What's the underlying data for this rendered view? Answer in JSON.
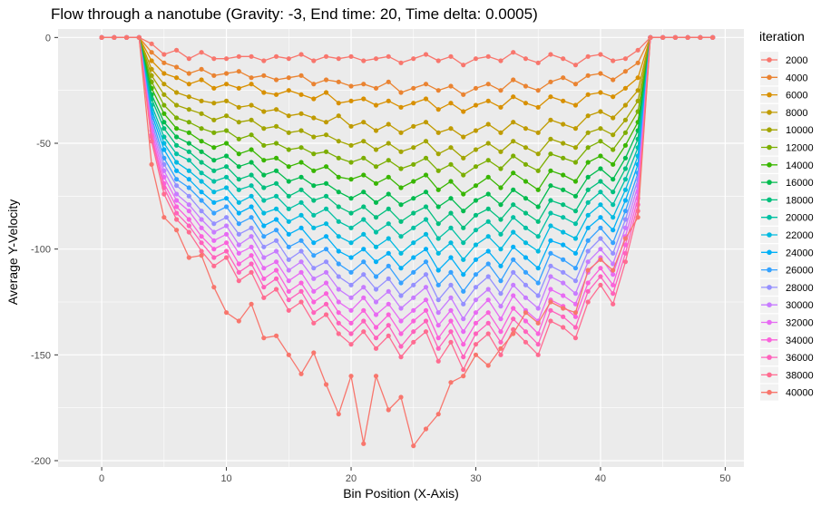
{
  "chart_data": {
    "type": "line",
    "title": "Flow through a nanotube (Gravity: -3, End time: 20, Time delta: 0.0005)",
    "xlabel": "Bin Position (X-Axis)",
    "ylabel": "Average Y-Velocity",
    "xlim": [
      -3.5,
      51.5
    ],
    "ylim": [
      -203,
      4
    ],
    "x_ticks": [
      0,
      10,
      20,
      30,
      40,
      50
    ],
    "x_tick_labels": [
      "0",
      "10",
      "20",
      "30",
      "40",
      "50"
    ],
    "y_ticks": [
      0,
      -50,
      -100,
      -150,
      -200
    ],
    "y_tick_labels": [
      "0",
      "-50",
      "-100",
      "-150",
      "-200"
    ],
    "grid": true,
    "legend_title": "iteration",
    "legend_position": "right",
    "x": [
      0,
      1,
      2,
      3,
      4,
      5,
      6,
      7,
      8,
      9,
      10,
      11,
      12,
      13,
      14,
      15,
      16,
      17,
      18,
      19,
      20,
      21,
      22,
      23,
      24,
      25,
      26,
      27,
      28,
      29,
      30,
      31,
      32,
      33,
      34,
      35,
      36,
      37,
      38,
      39,
      40,
      41,
      42,
      43,
      44,
      45,
      46,
      47,
      48,
      49
    ],
    "series": [
      {
        "name": "2000",
        "color": "#F8766D",
        "values": [
          0,
          0,
          0,
          0,
          -3,
          -8,
          -6,
          -10,
          -7,
          -10,
          -10,
          -9,
          -9,
          -11,
          -9,
          -10,
          -8,
          -11,
          -9,
          -10,
          -9,
          -11,
          -10,
          -9,
          -12,
          -10,
          -8,
          -11,
          -9,
          -13,
          -10,
          -9,
          -11,
          -7,
          -10,
          -12,
          -8,
          -10,
          -13,
          -9,
          -8,
          -11,
          -10,
          -6,
          0,
          0,
          0,
          0,
          0,
          0
        ]
      },
      {
        "name": "4000",
        "color": "#EA8331",
        "values": [
          0,
          0,
          0,
          0,
          -7,
          -12,
          -14,
          -17,
          -15,
          -18,
          -17,
          -16,
          -19,
          -18,
          -20,
          -19,
          -18,
          -22,
          -20,
          -21,
          -23,
          -22,
          -24,
          -21,
          -26,
          -24,
          -22,
          -25,
          -23,
          -27,
          -24,
          -22,
          -25,
          -20,
          -23,
          -25,
          -21,
          -19,
          -22,
          -18,
          -17,
          -20,
          -16,
          -12,
          0,
          0,
          0,
          0,
          0,
          0
        ]
      },
      {
        "name": "6000",
        "color": "#D89000",
        "values": [
          0,
          0,
          0,
          0,
          -11,
          -17,
          -19,
          -22,
          -20,
          -24,
          -22,
          -24,
          -22,
          -26,
          -27,
          -25,
          -27,
          -29,
          -26,
          -31,
          -30,
          -29,
          -32,
          -30,
          -33,
          -31,
          -29,
          -34,
          -31,
          -35,
          -32,
          -30,
          -33,
          -28,
          -31,
          -33,
          -28,
          -30,
          -32,
          -27,
          -26,
          -28,
          -24,
          -19,
          0,
          0,
          0,
          0,
          0,
          0
        ]
      },
      {
        "name": "8000",
        "color": "#C09B00",
        "values": [
          0,
          0,
          0,
          0,
          -15,
          -22,
          -26,
          -28,
          -30,
          -31,
          -30,
          -33,
          -32,
          -35,
          -34,
          -37,
          -36,
          -38,
          -40,
          -37,
          -42,
          -40,
          -44,
          -41,
          -45,
          -42,
          -40,
          -45,
          -43,
          -47,
          -44,
          -41,
          -45,
          -40,
          -43,
          -45,
          -39,
          -41,
          -43,
          -37,
          -35,
          -38,
          -32,
          -25,
          0,
          0,
          0,
          0,
          0,
          0
        ]
      },
      {
        "name": "10000",
        "color": "#A3A500",
        "values": [
          0,
          0,
          0,
          0,
          -18,
          -27,
          -32,
          -34,
          -36,
          -39,
          -37,
          -40,
          -39,
          -43,
          -42,
          -45,
          -44,
          -47,
          -46,
          -49,
          -51,
          -49,
          -53,
          -50,
          -54,
          -52,
          -49,
          -55,
          -52,
          -57,
          -53,
          -50,
          -54,
          -49,
          -52,
          -55,
          -48,
          -50,
          -52,
          -45,
          -43,
          -46,
          -39,
          -30,
          0,
          0,
          0,
          0,
          0,
          0
        ]
      },
      {
        "name": "12000",
        "color": "#7CAE00",
        "values": [
          0,
          0,
          0,
          0,
          -21,
          -32,
          -38,
          -40,
          -43,
          -45,
          -44,
          -48,
          -46,
          -51,
          -50,
          -53,
          -52,
          -55,
          -54,
          -57,
          -59,
          -57,
          -61,
          -58,
          -62,
          -60,
          -57,
          -63,
          -60,
          -65,
          -61,
          -58,
          -62,
          -56,
          -60,
          -63,
          -55,
          -57,
          -59,
          -52,
          -49,
          -53,
          -45,
          -35,
          0,
          0,
          0,
          0,
          0,
          0
        ]
      },
      {
        "name": "14000",
        "color": "#39B600",
        "values": [
          0,
          0,
          0,
          0,
          -24,
          -36,
          -43,
          -45,
          -49,
          -52,
          -50,
          -55,
          -53,
          -58,
          -57,
          -61,
          -59,
          -63,
          -61,
          -66,
          -67,
          -65,
          -69,
          -66,
          -71,
          -68,
          -65,
          -72,
          -68,
          -74,
          -70,
          -66,
          -71,
          -64,
          -68,
          -72,
          -63,
          -65,
          -68,
          -59,
          -56,
          -60,
          -51,
          -40,
          0,
          0,
          0,
          0,
          0,
          0
        ]
      },
      {
        "name": "16000",
        "color": "#00BB4E",
        "values": [
          0,
          0,
          0,
          0,
          -27,
          -40,
          -47,
          -50,
          -54,
          -58,
          -56,
          -61,
          -59,
          -65,
          -63,
          -68,
          -66,
          -70,
          -69,
          -73,
          -76,
          -73,
          -78,
          -74,
          -79,
          -76,
          -73,
          -80,
          -76,
          -82,
          -77,
          -74,
          -79,
          -72,
          -76,
          -80,
          -70,
          -72,
          -75,
          -66,
          -62,
          -67,
          -57,
          -44,
          0,
          0,
          0,
          0,
          0,
          0
        ]
      },
      {
        "name": "18000",
        "color": "#00BF7D",
        "values": [
          0,
          0,
          0,
          0,
          -29,
          -43,
          -51,
          -54,
          -59,
          -63,
          -61,
          -67,
          -65,
          -71,
          -69,
          -75,
          -72,
          -77,
          -75,
          -80,
          -83,
          -80,
          -85,
          -81,
          -87,
          -83,
          -80,
          -88,
          -83,
          -90,
          -84,
          -81,
          -86,
          -79,
          -83,
          -87,
          -77,
          -79,
          -82,
          -72,
          -68,
          -73,
          -62,
          -48,
          0,
          0,
          0,
          0,
          0,
          0
        ]
      },
      {
        "name": "20000",
        "color": "#00C1A3",
        "values": [
          0,
          0,
          0,
          0,
          -32,
          -47,
          -55,
          -58,
          -64,
          -68,
          -66,
          -72,
          -70,
          -77,
          -75,
          -81,
          -78,
          -84,
          -81,
          -87,
          -90,
          -86,
          -92,
          -88,
          -94,
          -90,
          -86,
          -95,
          -90,
          -97,
          -91,
          -87,
          -93,
          -85,
          -90,
          -94,
          -83,
          -85,
          -88,
          -78,
          -73,
          -79,
          -67,
          -52,
          0,
          0,
          0,
          0,
          0,
          0
        ]
      },
      {
        "name": "22000",
        "color": "#00BAE0",
        "values": [
          0,
          0,
          0,
          0,
          -34,
          -50,
          -59,
          -63,
          -68,
          -73,
          -71,
          -78,
          -75,
          -83,
          -81,
          -87,
          -84,
          -90,
          -88,
          -94,
          -97,
          -93,
          -99,
          -95,
          -102,
          -97,
          -93,
          -102,
          -97,
          -105,
          -98,
          -94,
          -100,
          -92,
          -97,
          -101,
          -89,
          -92,
          -95,
          -84,
          -79,
          -85,
          -72,
          -56,
          0,
          0,
          0,
          0,
          0,
          0
        ]
      },
      {
        "name": "24000",
        "color": "#00B0F6",
        "values": [
          0,
          0,
          0,
          0,
          -36,
          -53,
          -63,
          -67,
          -73,
          -78,
          -76,
          -83,
          -80,
          -89,
          -86,
          -93,
          -90,
          -97,
          -94,
          -101,
          -104,
          -100,
          -106,
          -102,
          -109,
          -104,
          -100,
          -110,
          -104,
          -112,
          -105,
          -101,
          -108,
          -99,
          -104,
          -109,
          -96,
          -98,
          -102,
          -90,
          -85,
          -91,
          -77,
          -60,
          0,
          0,
          0,
          0,
          0,
          0
        ]
      },
      {
        "name": "26000",
        "color": "#35A2FF",
        "values": [
          0,
          0,
          0,
          0,
          -38,
          -57,
          -67,
          -71,
          -77,
          -83,
          -80,
          -88,
          -85,
          -94,
          -91,
          -99,
          -96,
          -103,
          -100,
          -107,
          -111,
          -106,
          -113,
          -108,
          -116,
          -111,
          -106,
          -117,
          -111,
          -120,
          -112,
          -107,
          -115,
          -105,
          -111,
          -116,
          -102,
          -105,
          -109,
          -96,
          -90,
          -97,
          -82,
          -64,
          0,
          0,
          0,
          0,
          0,
          0
        ]
      },
      {
        "name": "28000",
        "color": "#9590FF",
        "values": [
          0,
          0,
          0,
          0,
          -40,
          -60,
          -70,
          -75,
          -82,
          -88,
          -85,
          -93,
          -90,
          -99,
          -96,
          -105,
          -101,
          -109,
          -106,
          -113,
          -117,
          -112,
          -119,
          -114,
          -122,
          -117,
          -112,
          -124,
          -117,
          -126,
          -118,
          -113,
          -121,
          -111,
          -117,
          -122,
          -108,
          -111,
          -115,
          -101,
          -95,
          -102,
          -86,
          -67,
          0,
          0,
          0,
          0,
          0,
          0
        ]
      },
      {
        "name": "30000",
        "color": "#C77CFF",
        "values": [
          0,
          0,
          0,
          0,
          -42,
          -63,
          -74,
          -79,
          -86,
          -92,
          -89,
          -98,
          -94,
          -104,
          -101,
          -110,
          -106,
          -114,
          -111,
          -119,
          -123,
          -118,
          -125,
          -120,
          -128,
          -123,
          -118,
          -130,
          -123,
          -133,
          -124,
          -119,
          -127,
          -117,
          -123,
          -128,
          -113,
          -116,
          -121,
          -106,
          -100,
          -107,
          -90,
          -70,
          0,
          0,
          0,
          0,
          0,
          0
        ]
      },
      {
        "name": "32000",
        "color": "#E76BF3",
        "values": [
          0,
          0,
          0,
          0,
          -44,
          -66,
          -77,
          -82,
          -90,
          -96,
          -93,
          -102,
          -99,
          -109,
          -106,
          -115,
          -111,
          -120,
          -116,
          -125,
          -129,
          -123,
          -131,
          -126,
          -134,
          -129,
          -124,
          -136,
          -129,
          -139,
          -130,
          -124,
          -133,
          -122,
          -129,
          -134,
          -119,
          -122,
          -126,
          -111,
          -104,
          -112,
          -94,
          -73,
          0,
          0,
          0,
          0,
          0,
          0
        ]
      },
      {
        "name": "34000",
        "color": "#FA62DB",
        "values": [
          0,
          0,
          0,
          0,
          -46,
          -69,
          -80,
          -86,
          -94,
          -100,
          -97,
          -107,
          -103,
          -114,
          -110,
          -120,
          -116,
          -125,
          -121,
          -130,
          -135,
          -129,
          -137,
          -131,
          -140,
          -134,
          -129,
          -142,
          -134,
          -145,
          -135,
          -130,
          -139,
          -128,
          -134,
          -140,
          -124,
          -127,
          -132,
          -116,
          -109,
          -117,
          -98,
          -76,
          0,
          0,
          0,
          0,
          0,
          0
        ]
      },
      {
        "name": "36000",
        "color": "#FF62BC",
        "values": [
          0,
          0,
          0,
          0,
          -47,
          -71,
          -83,
          -89,
          -97,
          -104,
          -101,
          -111,
          -107,
          -118,
          -114,
          -124,
          -120,
          -130,
          -126,
          -135,
          -140,
          -134,
          -142,
          -136,
          -146,
          -139,
          -134,
          -147,
          -139,
          -151,
          -140,
          -135,
          -144,
          -133,
          -139,
          -145,
          -129,
          -132,
          -137,
          -120,
          -113,
          -121,
          -102,
          -79,
          0,
          0,
          0,
          0,
          0,
          0
        ]
      },
      {
        "name": "38000",
        "color": "#FF6C91",
        "values": [
          0,
          0,
          0,
          0,
          -49,
          -74,
          -86,
          -92,
          -101,
          -108,
          -104,
          -115,
          -111,
          -123,
          -119,
          -129,
          -125,
          -135,
          -131,
          -140,
          -145,
          -139,
          -147,
          -141,
          -151,
          -144,
          -139,
          -153,
          -144,
          -157,
          -145,
          -140,
          -150,
          -138,
          -144,
          -150,
          -134,
          -137,
          -142,
          -125,
          -117,
          -126,
          -106,
          -82,
          0,
          0,
          0,
          0,
          0,
          0
        ]
      },
      {
        "name": "40000",
        "color": "#F8766D",
        "values": [
          0,
          0,
          0,
          0,
          -60,
          -85,
          -91,
          -104,
          -103,
          -118,
          -130,
          -134,
          -126,
          -142,
          -141,
          -150,
          -159,
          -149,
          -164,
          -178,
          -160,
          -192,
          -160,
          -176,
          -170,
          -193,
          -185,
          -178,
          -163,
          -160,
          -150,
          -155,
          -147,
          -140,
          -130,
          -135,
          -125,
          -128,
          -130,
          -110,
          -105,
          -110,
          -95,
          -85,
          0,
          0,
          0,
          0,
          0,
          0
        ]
      }
    ]
  }
}
